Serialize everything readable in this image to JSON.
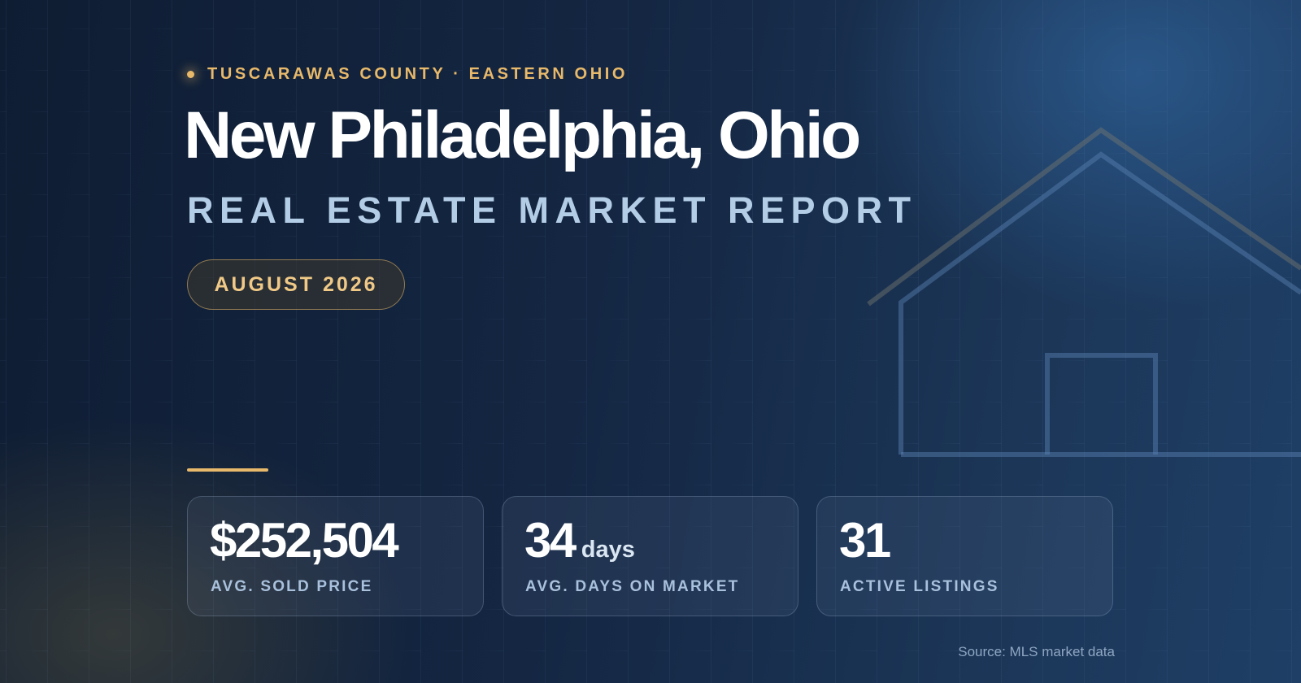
{
  "header": {
    "eyebrow": "TUSCARAWAS COUNTY · EASTERN OHIO",
    "title": "New Philadelphia, Ohio",
    "subtitle": "REAL ESTATE MARKET REPORT",
    "badge": "AUGUST 2026"
  },
  "stats": [
    {
      "value": "$252,504",
      "label": "AVG. SOLD PRICE"
    },
    {
      "value": "34",
      "unit": "days",
      "label": "AVG. DAYS ON MARKET"
    },
    {
      "value": "31",
      "label": "ACTIVE LISTINGS"
    }
  ],
  "footer": {
    "source": "Source: MLS market data"
  }
}
